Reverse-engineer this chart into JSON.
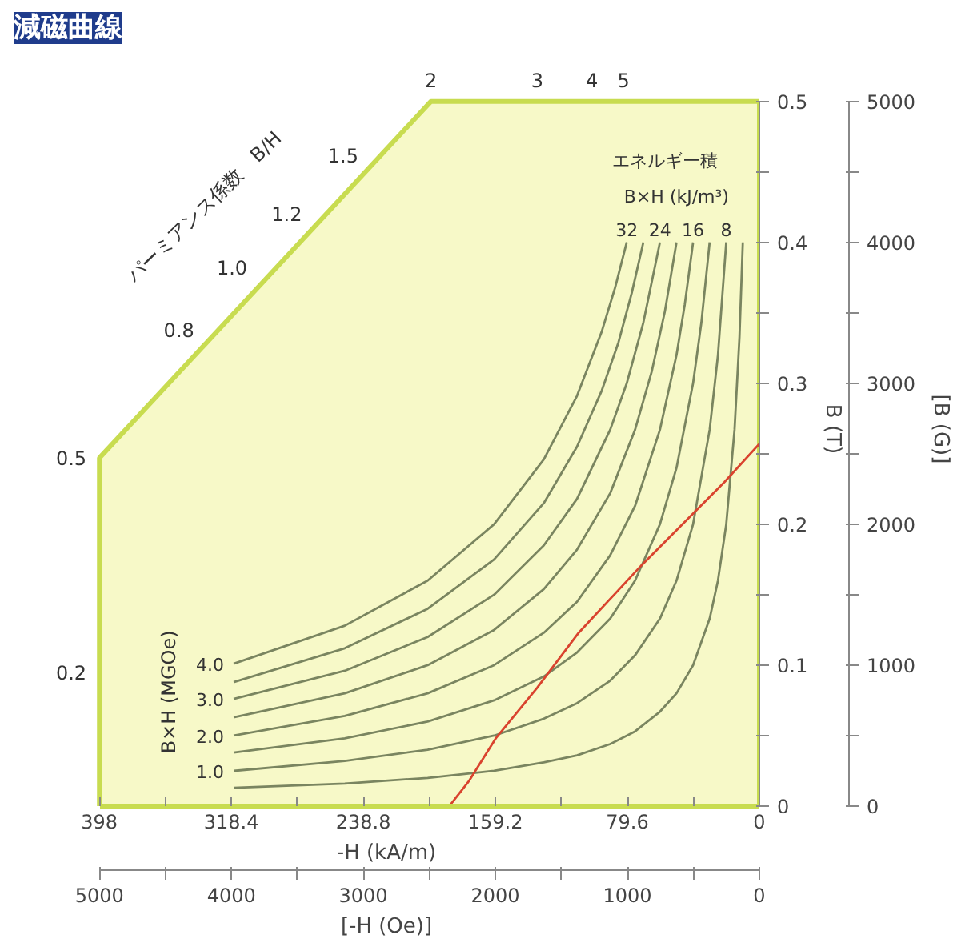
{
  "chart_data": {
    "type": "line",
    "title": "減磁曲線",
    "xlabel": "-H (kA/m)",
    "ylabel": "B (T)",
    "y2label": "[B (G)]",
    "x2label": "[-H (Oe)]",
    "xlim": [
      398,
      0
    ],
    "xticks": [
      398,
      {
        "value": 358.2,
        "label": null
      },
      318.4,
      {
        "value": 278.6,
        "label": null
      },
      238.8,
      {
        "value": 199,
        "label": null
      },
      159.2,
      {
        "value": 119.4,
        "label": null
      },
      79.6,
      {
        "value": 39.8,
        "label": null
      },
      0
    ],
    "ylim": [
      0,
      0.5
    ],
    "yticks": [
      0,
      {
        "value": 0.05,
        "label": null
      },
      0.1,
      {
        "value": 0.15,
        "label": null
      },
      0.2,
      {
        "value": 0.25,
        "label": null
      },
      0.3,
      {
        "value": 0.35,
        "label": null
      },
      0.4,
      {
        "value": 0.45,
        "label": null
      },
      0.5
    ],
    "y2lim": [
      0,
      5000
    ],
    "y2ticks": [
      0,
      {
        "value": 500,
        "label": null
      },
      1000,
      {
        "value": 1500,
        "label": null
      },
      2000,
      {
        "value": 2500,
        "label": null
      },
      3000,
      {
        "value": 3500,
        "label": null
      },
      4000,
      {
        "value": 4500,
        "label": null
      },
      5000
    ],
    "x2lim": [
      5000,
      0
    ],
    "x2ticks": [
      5000,
      {
        "value": 4500,
        "label": null
      },
      4000,
      {
        "value": 3500,
        "label": null
      },
      3000,
      {
        "value": 2500,
        "label": null
      },
      2000,
      {
        "value": 1500,
        "label": null
      },
      1000,
      {
        "value": 500,
        "label": null
      },
      0
    ],
    "grid": false,
    "line_style": "solid",
    "series": [
      {
        "color": "#7a8560",
        "x": [
          317,
          250,
          200,
          160,
          130,
          110,
          90,
          75,
          60,
          50,
          40,
          30,
          25,
          20,
          15,
          12,
          10
        ],
        "values": [
          0.013,
          0.016,
          0.02,
          0.025,
          0.031,
          0.036,
          0.044,
          0.053,
          0.067,
          0.08,
          0.1,
          0.133,
          0.16,
          0.2,
          0.267,
          0.333,
          0.4
        ]
      },
      {
        "color": "#7a8560",
        "x": [
          317,
          250,
          200,
          160,
          130,
          110,
          90,
          75,
          60,
          50,
          40,
          30,
          25,
          20
        ],
        "values": [
          0.025,
          0.032,
          0.04,
          0.05,
          0.062,
          0.073,
          0.089,
          0.107,
          0.133,
          0.16,
          0.2,
          0.267,
          0.32,
          0.4
        ]
      },
      {
        "color": "#7a8560",
        "x": [
          317,
          250,
          200,
          160,
          130,
          110,
          90,
          75,
          60,
          50,
          40,
          35,
          30
        ],
        "values": [
          0.038,
          0.048,
          0.06,
          0.075,
          0.092,
          0.109,
          0.133,
          0.16,
          0.2,
          0.24,
          0.3,
          0.343,
          0.4
        ]
      },
      {
        "color": "#7a8560",
        "x": [
          317,
          250,
          200,
          160,
          130,
          110,
          90,
          75,
          60,
          50,
          45,
          40
        ],
        "values": [
          0.05,
          0.064,
          0.08,
          0.1,
          0.123,
          0.145,
          0.178,
          0.213,
          0.267,
          0.32,
          0.356,
          0.4
        ]
      },
      {
        "color": "#7a8560",
        "x": [
          317,
          250,
          200,
          160,
          130,
          110,
          90,
          75,
          65,
          57,
          50
        ],
        "values": [
          0.063,
          0.08,
          0.1,
          0.125,
          0.154,
          0.182,
          0.222,
          0.267,
          0.308,
          0.351,
          0.4
        ]
      },
      {
        "color": "#7a8560",
        "x": [
          317,
          250,
          200,
          160,
          130,
          110,
          90,
          80,
          70,
          60
        ],
        "values": [
          0.076,
          0.096,
          0.12,
          0.15,
          0.185,
          0.218,
          0.267,
          0.3,
          0.343,
          0.4
        ]
      },
      {
        "color": "#7a8560",
        "x": [
          317,
          250,
          200,
          160,
          130,
          110,
          95,
          85,
          77,
          70
        ],
        "values": [
          0.088,
          0.112,
          0.14,
          0.175,
          0.215,
          0.255,
          0.295,
          0.329,
          0.364,
          0.4
        ]
      },
      {
        "color": "#7a8560",
        "x": [
          317,
          250,
          200,
          160,
          130,
          110,
          95,
          87,
          80
        ],
        "values": [
          0.101,
          0.128,
          0.16,
          0.2,
          0.246,
          0.291,
          0.337,
          0.368,
          0.4
        ]
      },
      {
        "color": "#d9432e",
        "x": [
          187,
          175,
          159,
          134,
          109,
          71,
          21,
          0
        ],
        "values": [
          0,
          0.018,
          0.048,
          0.084,
          0.123,
          0.171,
          0.23,
          0.257
        ]
      }
    ],
    "annotations": [
      "パーミアンス係数　B/H",
      "エネルギー積",
      "B×H (kJ/m³)",
      "B×H (MGOe)",
      "0.5",
      "0.8",
      "1.0",
      "1.2",
      "1.5",
      "2",
      "3",
      "4",
      "5",
      "0.2",
      {
        "text": "32",
        "x": 80,
        "y": 0.4
      },
      {
        "text": "24",
        "x": 60,
        "y": 0.4
      },
      {
        "text": "16",
        "x": 40,
        "y": 0.4
      },
      {
        "text": "8",
        "x": 20,
        "y": 0.4
      },
      {
        "text": "4.0",
        "x": 317,
        "y": 0.101
      },
      {
        "text": "3.0",
        "x": 317,
        "y": 0.076
      },
      {
        "text": "2.0",
        "x": 317,
        "y": 0.05
      },
      {
        "text": "1.0",
        "x": 317,
        "y": 0.025
      }
    ]
  }
}
